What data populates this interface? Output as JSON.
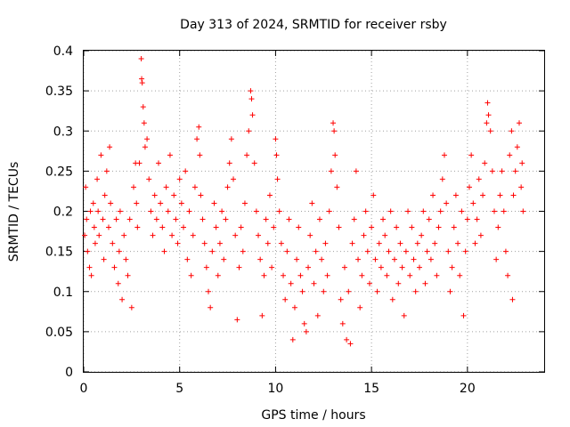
{
  "chart_data": {
    "type": "scatter",
    "title": "Day 313 of 2024, SRMTID for receiver rsby",
    "xlabel": "GPS time / hours",
    "ylabel": "SRMTID / TECUs",
    "xlim": [
      0,
      24
    ],
    "ylim": [
      0,
      0.4
    ],
    "xticks": [
      "0",
      "5",
      "10",
      "15",
      "20"
    ],
    "yticks": [
      "0",
      "0.05",
      "0.1",
      "0.15",
      "0.2",
      "0.25",
      "0.3",
      "0.35",
      "0.4"
    ],
    "grid": true,
    "legend": "none",
    "marker": "plus",
    "color": "#ff0000",
    "series": [
      {
        "points": [
          [
            0.05,
            0.17
          ],
          [
            0.1,
            0.23
          ],
          [
            0.15,
            0.19
          ],
          [
            0.2,
            0.15
          ],
          [
            0.3,
            0.13
          ],
          [
            0.35,
            0.2
          ],
          [
            0.4,
            0.12
          ],
          [
            0.5,
            0.21
          ],
          [
            0.55,
            0.18
          ],
          [
            0.6,
            0.16
          ],
          [
            0.7,
            0.24
          ],
          [
            0.75,
            0.2
          ],
          [
            0.8,
            0.17
          ],
          [
            0.9,
            0.27
          ],
          [
            1.0,
            0.19
          ],
          [
            1.05,
            0.14
          ],
          [
            1.1,
            0.22
          ],
          [
            1.2,
            0.25
          ],
          [
            1.3,
            0.18
          ],
          [
            1.35,
            0.28
          ],
          [
            1.4,
            0.21
          ],
          [
            1.5,
            0.16
          ],
          [
            1.6,
            0.13
          ],
          [
            1.7,
            0.19
          ],
          [
            1.8,
            0.11
          ],
          [
            1.85,
            0.15
          ],
          [
            1.9,
            0.2
          ],
          [
            2.0,
            0.09
          ],
          [
            2.1,
            0.17
          ],
          [
            2.2,
            0.14
          ],
          [
            2.3,
            0.12
          ],
          [
            2.4,
            0.19
          ],
          [
            2.5,
            0.08
          ],
          [
            2.6,
            0.23
          ],
          [
            2.7,
            0.26
          ],
          [
            2.75,
            0.21
          ],
          [
            2.8,
            0.18
          ],
          [
            2.9,
            0.26
          ],
          [
            3.0,
            0.39
          ],
          [
            3.02,
            0.365
          ],
          [
            3.05,
            0.36
          ],
          [
            3.1,
            0.33
          ],
          [
            3.15,
            0.31
          ],
          [
            3.2,
            0.28
          ],
          [
            3.3,
            0.29
          ],
          [
            3.4,
            0.24
          ],
          [
            3.5,
            0.2
          ],
          [
            3.6,
            0.17
          ],
          [
            3.7,
            0.22
          ],
          [
            3.8,
            0.19
          ],
          [
            3.9,
            0.26
          ],
          [
            4.0,
            0.21
          ],
          [
            4.1,
            0.18
          ],
          [
            4.2,
            0.15
          ],
          [
            4.3,
            0.23
          ],
          [
            4.4,
            0.2
          ],
          [
            4.5,
            0.27
          ],
          [
            4.6,
            0.17
          ],
          [
            4.7,
            0.22
          ],
          [
            4.8,
            0.19
          ],
          [
            4.9,
            0.16
          ],
          [
            5.0,
            0.24
          ],
          [
            5.1,
            0.21
          ],
          [
            5.2,
            0.18
          ],
          [
            5.3,
            0.25
          ],
          [
            5.4,
            0.14
          ],
          [
            5.5,
            0.2
          ],
          [
            5.6,
            0.12
          ],
          [
            5.7,
            0.17
          ],
          [
            5.8,
            0.23
          ],
          [
            5.9,
            0.29
          ],
          [
            6.0,
            0.305
          ],
          [
            6.05,
            0.27
          ],
          [
            6.1,
            0.22
          ],
          [
            6.2,
            0.19
          ],
          [
            6.3,
            0.16
          ],
          [
            6.4,
            0.13
          ],
          [
            6.5,
            0.1
          ],
          [
            6.6,
            0.08
          ],
          [
            6.7,
            0.15
          ],
          [
            6.8,
            0.21
          ],
          [
            6.9,
            0.18
          ],
          [
            7.0,
            0.12
          ],
          [
            7.1,
            0.16
          ],
          [
            7.2,
            0.2
          ],
          [
            7.3,
            0.14
          ],
          [
            7.4,
            0.19
          ],
          [
            7.5,
            0.23
          ],
          [
            7.6,
            0.26
          ],
          [
            7.7,
            0.29
          ],
          [
            7.8,
            0.24
          ],
          [
            7.9,
            0.17
          ],
          [
            8.0,
            0.065
          ],
          [
            8.1,
            0.13
          ],
          [
            8.2,
            0.18
          ],
          [
            8.3,
            0.15
          ],
          [
            8.4,
            0.21
          ],
          [
            8.5,
            0.27
          ],
          [
            8.6,
            0.3
          ],
          [
            8.7,
            0.35
          ],
          [
            8.75,
            0.34
          ],
          [
            8.8,
            0.32
          ],
          [
            8.9,
            0.26
          ],
          [
            9.0,
            0.2
          ],
          [
            9.1,
            0.17
          ],
          [
            9.2,
            0.14
          ],
          [
            9.3,
            0.07
          ],
          [
            9.4,
            0.12
          ],
          [
            9.5,
            0.19
          ],
          [
            9.6,
            0.16
          ],
          [
            9.7,
            0.22
          ],
          [
            9.8,
            0.13
          ],
          [
            9.9,
            0.18
          ],
          [
            10.0,
            0.29
          ],
          [
            10.05,
            0.27
          ],
          [
            10.1,
            0.24
          ],
          [
            10.2,
            0.2
          ],
          [
            10.3,
            0.16
          ],
          [
            10.4,
            0.12
          ],
          [
            10.5,
            0.09
          ],
          [
            10.6,
            0.15
          ],
          [
            10.7,
            0.19
          ],
          [
            10.8,
            0.11
          ],
          [
            10.9,
            0.04
          ],
          [
            11.0,
            0.08
          ],
          [
            11.1,
            0.14
          ],
          [
            11.2,
            0.18
          ],
          [
            11.3,
            0.12
          ],
          [
            11.4,
            0.1
          ],
          [
            11.5,
            0.06
          ],
          [
            11.6,
            0.05
          ],
          [
            11.7,
            0.13
          ],
          [
            11.8,
            0.17
          ],
          [
            11.9,
            0.21
          ],
          [
            12.0,
            0.11
          ],
          [
            12.1,
            0.15
          ],
          [
            12.2,
            0.07
          ],
          [
            12.3,
            0.19
          ],
          [
            12.4,
            0.14
          ],
          [
            12.5,
            0.1
          ],
          [
            12.6,
            0.16
          ],
          [
            12.7,
            0.12
          ],
          [
            12.8,
            0.2
          ],
          [
            12.9,
            0.25
          ],
          [
            13.0,
            0.31
          ],
          [
            13.05,
            0.3
          ],
          [
            13.1,
            0.27
          ],
          [
            13.2,
            0.23
          ],
          [
            13.3,
            0.18
          ],
          [
            13.4,
            0.09
          ],
          [
            13.5,
            0.06
          ],
          [
            13.6,
            0.13
          ],
          [
            13.7,
            0.04
          ],
          [
            13.8,
            0.1
          ],
          [
            13.9,
            0.035
          ],
          [
            14.0,
            0.16
          ],
          [
            14.1,
            0.19
          ],
          [
            14.2,
            0.25
          ],
          [
            14.3,
            0.14
          ],
          [
            14.4,
            0.08
          ],
          [
            14.5,
            0.12
          ],
          [
            14.6,
            0.17
          ],
          [
            14.7,
            0.2
          ],
          [
            14.8,
            0.15
          ],
          [
            14.9,
            0.11
          ],
          [
            15.0,
            0.18
          ],
          [
            15.1,
            0.22
          ],
          [
            15.2,
            0.14
          ],
          [
            15.3,
            0.1
          ],
          [
            15.4,
            0.16
          ],
          [
            15.5,
            0.13
          ],
          [
            15.6,
            0.19
          ],
          [
            15.7,
            0.17
          ],
          [
            15.8,
            0.12
          ],
          [
            15.9,
            0.15
          ],
          [
            16.0,
            0.2
          ],
          [
            16.1,
            0.09
          ],
          [
            16.2,
            0.14
          ],
          [
            16.3,
            0.18
          ],
          [
            16.4,
            0.11
          ],
          [
            16.5,
            0.16
          ],
          [
            16.6,
            0.13
          ],
          [
            16.7,
            0.07
          ],
          [
            16.8,
            0.15
          ],
          [
            16.9,
            0.2
          ],
          [
            17.0,
            0.12
          ],
          [
            17.1,
            0.18
          ],
          [
            17.2,
            0.14
          ],
          [
            17.3,
            0.1
          ],
          [
            17.4,
            0.16
          ],
          [
            17.5,
            0.13
          ],
          [
            17.6,
            0.17
          ],
          [
            17.7,
            0.2
          ],
          [
            17.8,
            0.11
          ],
          [
            17.9,
            0.15
          ],
          [
            18.0,
            0.19
          ],
          [
            18.1,
            0.14
          ],
          [
            18.2,
            0.22
          ],
          [
            18.3,
            0.16
          ],
          [
            18.4,
            0.12
          ],
          [
            18.5,
            0.18
          ],
          [
            18.6,
            0.2
          ],
          [
            18.7,
            0.24
          ],
          [
            18.8,
            0.27
          ],
          [
            18.9,
            0.21
          ],
          [
            19.0,
            0.15
          ],
          [
            19.1,
            0.1
          ],
          [
            19.2,
            0.13
          ],
          [
            19.3,
            0.18
          ],
          [
            19.4,
            0.22
          ],
          [
            19.5,
            0.16
          ],
          [
            19.6,
            0.12
          ],
          [
            19.7,
            0.2
          ],
          [
            19.8,
            0.07
          ],
          [
            19.9,
            0.15
          ],
          [
            20.0,
            0.19
          ],
          [
            20.1,
            0.23
          ],
          [
            20.2,
            0.27
          ],
          [
            20.3,
            0.21
          ],
          [
            20.4,
            0.16
          ],
          [
            20.5,
            0.19
          ],
          [
            20.6,
            0.24
          ],
          [
            20.7,
            0.17
          ],
          [
            20.8,
            0.22
          ],
          [
            20.9,
            0.26
          ],
          [
            21.0,
            0.31
          ],
          [
            21.05,
            0.335
          ],
          [
            21.1,
            0.32
          ],
          [
            21.2,
            0.3
          ],
          [
            21.3,
            0.25
          ],
          [
            21.4,
            0.2
          ],
          [
            21.5,
            0.14
          ],
          [
            21.6,
            0.18
          ],
          [
            21.7,
            0.22
          ],
          [
            21.8,
            0.25
          ],
          [
            21.9,
            0.2
          ],
          [
            22.0,
            0.15
          ],
          [
            22.1,
            0.12
          ],
          [
            22.2,
            0.27
          ],
          [
            22.3,
            0.3
          ],
          [
            22.35,
            0.09
          ],
          [
            22.4,
            0.22
          ],
          [
            22.5,
            0.25
          ],
          [
            22.6,
            0.28
          ],
          [
            22.7,
            0.31
          ],
          [
            22.8,
            0.23
          ],
          [
            22.85,
            0.26
          ],
          [
            22.9,
            0.2
          ]
        ]
      }
    ]
  }
}
